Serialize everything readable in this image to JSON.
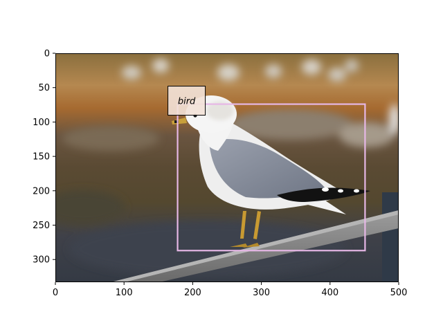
{
  "figure": {
    "x_ticks": [
      "0",
      "100",
      "200",
      "300",
      "400",
      "500"
    ],
    "y_ticks": [
      "0",
      "50",
      "100",
      "150",
      "200",
      "250",
      "300"
    ],
    "x_range": [
      0,
      500
    ],
    "y_range": [
      0,
      333
    ],
    "y_axis_direction": "top-down (image rows)",
    "scene": "ring-billed gull standing on a wooden railing, blurred waterfront background with distant gulls",
    "detections": [
      {
        "label": "bird",
        "box": {
          "xmin": 178,
          "ymin": 74,
          "xmax": 451,
          "ymax": 287
        },
        "color": "#e6b7e6"
      }
    ],
    "colors": {
      "box_stroke": "#e6b7e6",
      "label_fill": "#f3e2d8",
      "label_stroke": "#000000"
    }
  }
}
